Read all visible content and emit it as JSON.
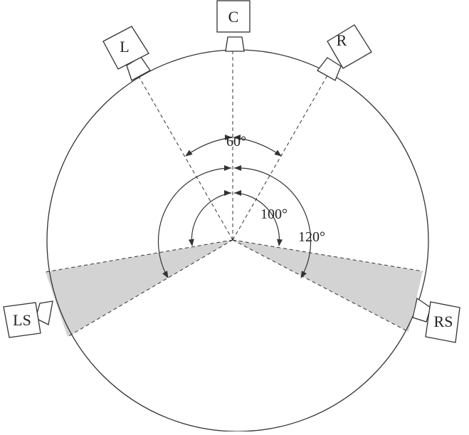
{
  "speakers": {
    "center": "C",
    "left": "L",
    "right": "R",
    "left_surround": "LS",
    "right_surround": "RS"
  },
  "angles": {
    "front_pair": "60°",
    "surround_min": "100°",
    "surround_max": "120°"
  },
  "colors": {
    "stroke": "#333333",
    "zone_fill": "#d3d3d3",
    "background": "#ffffff"
  }
}
